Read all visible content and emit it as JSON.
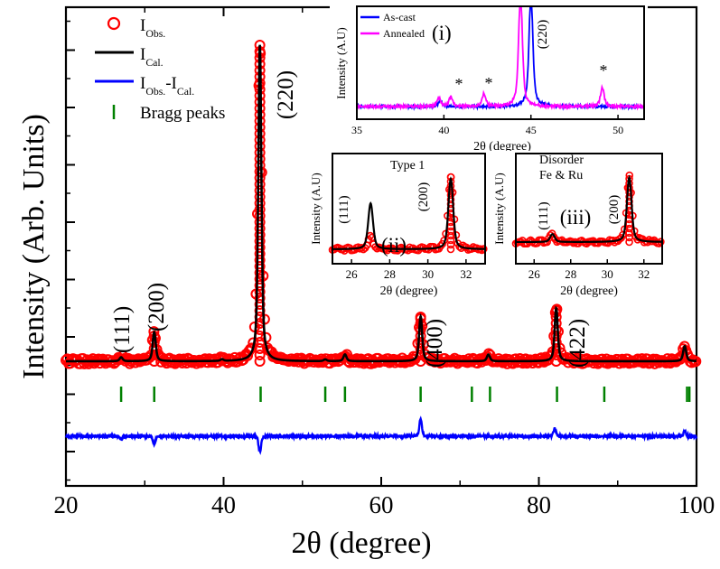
{
  "chart_data": [
    {
      "panel": "main",
      "type": "line",
      "xlabel": "2θ (degree)",
      "ylabel": "Intensity (Arb. Units)",
      "xlim": [
        20,
        100
      ],
      "x_ticks": [
        "20",
        "40",
        "60",
        "80",
        "100"
      ],
      "y_tick_labels": "none",
      "legend": {
        "placement": "top-left",
        "entries": [
          {
            "base": "I",
            "sub": "Obs.",
            "style": "red-circles"
          },
          {
            "base": "I",
            "sub": "Cal.",
            "style": "black-line"
          },
          {
            "base": "I",
            "sub": "Obs.",
            "mid": "-I",
            "sub2": "Cal.",
            "style": "blue-line"
          },
          {
            "base": "Bragg peaks",
            "sub": "",
            "style": "green-ticks"
          }
        ]
      },
      "peak_labels": [
        {
          "label": "(111)",
          "x": 27.0
        },
        {
          "label": "(200)",
          "x": 31.2
        },
        {
          "label": "(220)",
          "x": 44.6
        },
        {
          "label": "(400)",
          "x": 65.0
        },
        {
          "label": "(422)",
          "x": 82.3
        }
      ],
      "observed_peaks": [
        {
          "x": 27.0,
          "y": 0.07
        },
        {
          "x": 31.2,
          "y": 0.52
        },
        {
          "x": 39.8,
          "y": 0.03
        },
        {
          "x": 44.6,
          "y": 5.65
        },
        {
          "x": 52.9,
          "y": 0.03
        },
        {
          "x": 55.4,
          "y": 0.12
        },
        {
          "x": 65.0,
          "y": 0.8
        },
        {
          "x": 73.6,
          "y": 0.12
        },
        {
          "x": 82.2,
          "y": 0.95
        },
        {
          "x": 98.5,
          "y": 0.27
        }
      ],
      "background": 0.0,
      "bragg_positions": [
        27.0,
        31.2,
        44.7,
        52.9,
        55.4,
        65.0,
        71.5,
        73.8,
        82.3,
        88.3,
        98.8,
        99.1
      ],
      "difference_features": [
        {
          "x": 27.0,
          "y": -0.05
        },
        {
          "x": 31.2,
          "y": -0.12
        },
        {
          "x": 44.6,
          "y": -0.25
        },
        {
          "x": 65.0,
          "y": 0.28
        },
        {
          "x": 82.0,
          "y": 0.12
        },
        {
          "x": 98.5,
          "y": 0.08
        }
      ]
    },
    {
      "panel": "inset (i)",
      "type": "line",
      "label": "(i)",
      "xlabel": "2θ (degree)",
      "ylabel": "Intensity (A.U)",
      "xlim": [
        35,
        51.5
      ],
      "x_ticks": [
        "35",
        "40",
        "45",
        "50"
      ],
      "peak_label": {
        "label": "(220)",
        "x": 45.2
      },
      "series": [
        {
          "name": "As-cast",
          "color": "#0000ff",
          "peaks": [
            {
              "x": 39.8,
              "y": 0.15
            },
            {
              "x": 45.0,
              "y": 3.0
            }
          ]
        },
        {
          "name": "Annealed",
          "color": "#ff00ff",
          "peaks": [
            {
              "x": 39.7,
              "y": 0.22
            },
            {
              "x": 40.4,
              "y": 0.25
            },
            {
              "x": 42.3,
              "y": 0.32
            },
            {
              "x": 44.4,
              "y": 3.0
            },
            {
              "x": 49.1,
              "y": 0.48
            }
          ]
        }
      ],
      "star_marks": [
        {
          "text": "*",
          "x": 40.9
        },
        {
          "text": "*",
          "x": 42.4
        },
        {
          "text": "*",
          "x": 49.0
        }
      ]
    },
    {
      "panel": "inset (ii)",
      "type": "line",
      "label": "(ii)",
      "title": "Type 1",
      "xlabel": "2θ (degree)",
      "ylabel": "Intensity (A.U)",
      "xlim": [
        25,
        33
      ],
      "x_ticks": [
        "26",
        "28",
        "30",
        "32"
      ],
      "peak_labels": [
        {
          "label": "(111)",
          "x": 26.4
        },
        {
          "label": "(200)",
          "x": 30.7
        }
      ],
      "observed_peaks": [
        {
          "x": 27.0,
          "y": 0.18
        },
        {
          "x": 31.2,
          "y": 1.0
        }
      ],
      "calculated_peaks": [
        {
          "x": 27.0,
          "y": 0.62
        },
        {
          "x": 31.2,
          "y": 0.95
        }
      ]
    },
    {
      "panel": "inset (iii)",
      "type": "line",
      "label": "(iii)",
      "title": [
        "Disorder",
        "Fe & Ru"
      ],
      "xlabel": "2θ (degree)",
      "ylabel": "Intensity (A.U)",
      "xlim": [
        25,
        33
      ],
      "x_ticks": [
        "26",
        "28",
        "30",
        "32"
      ],
      "peak_labels": [
        {
          "label": "(111)",
          "x": 27.3
        },
        {
          "label": "(200)",
          "x": 30.7
        }
      ],
      "observed_peaks": [
        {
          "x": 27.0,
          "y": 0.12
        },
        {
          "x": 31.2,
          "y": 1.0
        }
      ],
      "calculated_peaks": [
        {
          "x": 27.0,
          "y": 0.12
        },
        {
          "x": 31.2,
          "y": 0.98
        }
      ]
    }
  ]
}
